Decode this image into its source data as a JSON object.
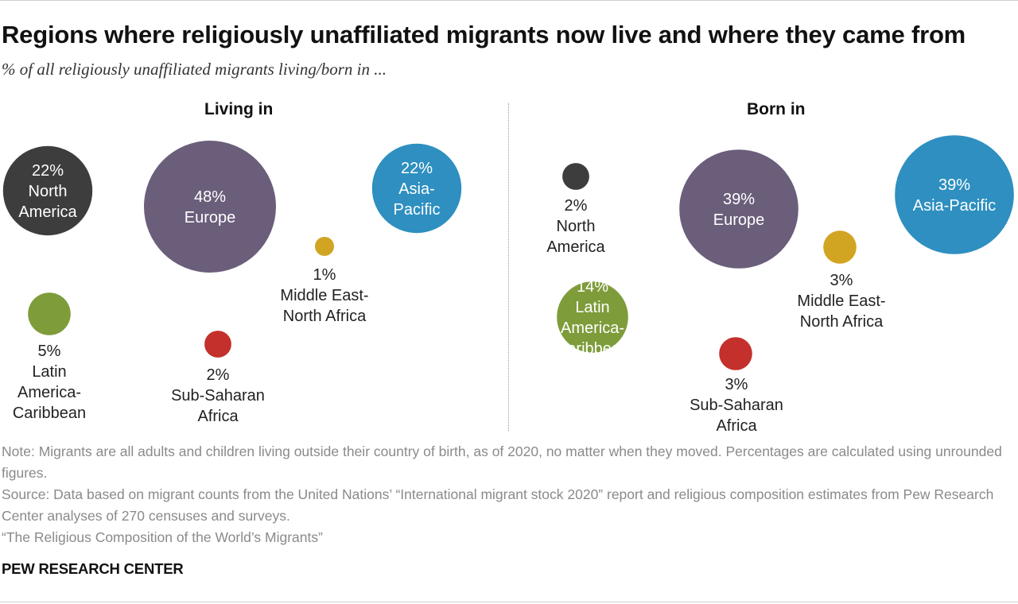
{
  "header": {
    "title": "Regions where religiously unaffiliated migrants now live and where they came from",
    "subtitle": "% of all religiously unaffiliated migrants living/born in ..."
  },
  "chart_data": [
    {
      "type": "bubble",
      "title": "Living in",
      "unit": "%",
      "points": [
        {
          "region": "North America",
          "value": 22,
          "label": "22%",
          "name_lines": [
            "North",
            "America"
          ],
          "label_inside": true,
          "color": "#3d3d3d"
        },
        {
          "region": "Europe",
          "value": 48,
          "label": "48%",
          "name_lines": [
            "Europe"
          ],
          "label_inside": true,
          "color": "#6b5e7b"
        },
        {
          "region": "Asia-Pacific",
          "value": 22,
          "label": "22%",
          "name_lines": [
            "Asia-",
            "Pacific"
          ],
          "label_inside": true,
          "color": "#2e8fc0"
        },
        {
          "region": "Middle East-North Africa",
          "value": 1,
          "label": "1%",
          "name_lines": [
            "Middle East-",
            "North Africa"
          ],
          "label_inside": false,
          "color": "#d1a522"
        },
        {
          "region": "Latin America-Caribbean",
          "value": 5,
          "label": "5%",
          "name_lines": [
            "Latin",
            "America-",
            "Caribbean"
          ],
          "label_inside": false,
          "color": "#7e9c3a"
        },
        {
          "region": "Sub-Saharan Africa",
          "value": 2,
          "label": "2%",
          "name_lines": [
            "Sub-Saharan",
            "Africa"
          ],
          "label_inside": false,
          "color": "#c4302b"
        }
      ]
    },
    {
      "type": "bubble",
      "title": "Born in",
      "unit": "%",
      "points": [
        {
          "region": "North America",
          "value": 2,
          "label": "2%",
          "name_lines": [
            "North",
            "America"
          ],
          "label_inside": false,
          "color": "#3d3d3d"
        },
        {
          "region": "Europe",
          "value": 39,
          "label": "39%",
          "name_lines": [
            "Europe"
          ],
          "label_inside": true,
          "color": "#6b5e7b"
        },
        {
          "region": "Asia-Pacific",
          "value": 39,
          "label": "39%",
          "name_lines": [
            "Asia-Pacific"
          ],
          "label_inside": true,
          "color": "#2e8fc0"
        },
        {
          "region": "Middle East-North Africa",
          "value": 3,
          "label": "3%",
          "name_lines": [
            "Middle East-",
            "North Africa"
          ],
          "label_inside": false,
          "color": "#d1a522"
        },
        {
          "region": "Latin America-Caribbean",
          "value": 14,
          "label": "14%",
          "name_lines": [
            "Latin",
            "America-",
            "Caribbean"
          ],
          "label_inside": true,
          "color": "#7e9c3a"
        },
        {
          "region": "Sub-Saharan Africa",
          "value": 3,
          "label": "3%",
          "name_lines": [
            "Sub-Saharan",
            "Africa"
          ],
          "label_inside": false,
          "color": "#c4302b"
        }
      ]
    }
  ],
  "footer": {
    "note": "Note: Migrants are all adults and children living outside their country of birth, as of 2020, no matter when they moved. Percentages are calculated using unrounded figures.",
    "source": "Source: Data based on migrant counts from the United Nations’ “International migrant stock 2020” report and religious composition estimates from Pew Research Center analyses of 270 censuses and surveys.",
    "report": "“The Religious Composition of the World’s Migrants”",
    "brand": "PEW RESEARCH CENTER"
  }
}
